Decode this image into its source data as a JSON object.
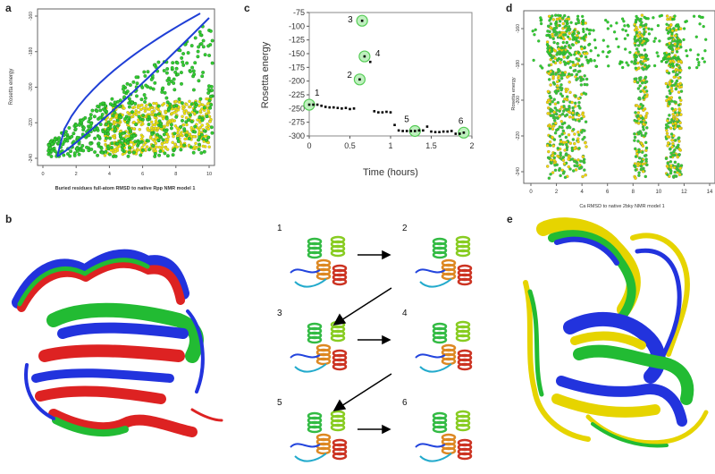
{
  "panels": {
    "a": {
      "letter": "a",
      "ylabel": "Rosetta energy",
      "xlabel": "Buried residues full-atom RMSD to native Rpp NMR model 1",
      "xticks": [
        "0",
        "2",
        "4",
        "6",
        "8",
        "10"
      ],
      "yticks": [
        "-160",
        "-180",
        "-200",
        "-220",
        "-240"
      ],
      "colors": {
        "green": "#33cc33",
        "yellow": "#f2e600",
        "blue": "#1f3fd6"
      }
    },
    "c": {
      "letter": "c",
      "ylabel": "Rosetta energy",
      "xlabel": "Time (hours)",
      "xticks": [
        "0",
        "0.5",
        "1",
        "1.5",
        "2"
      ],
      "yticks": [
        "-75",
        "-100",
        "-125",
        "-150",
        "-175",
        "-200",
        "-225",
        "-250",
        "-275",
        "-300"
      ],
      "point_labels": [
        "1",
        "2",
        "3",
        "4",
        "5",
        "6"
      ]
    },
    "d": {
      "letter": "d",
      "ylabel": "Rosetta energy",
      "xlabel": "Ca RMSD to native 2bky NMR model 1",
      "xticks": [
        "0",
        "2",
        "4",
        "6",
        "8",
        "10",
        "12",
        "14"
      ],
      "yticks": [
        "-160",
        "-180",
        "-200",
        "-220",
        "-240"
      ]
    },
    "b": {
      "letter": "b"
    },
    "e": {
      "letter": "e"
    },
    "middle": {
      "frame_labels": [
        "1",
        "2",
        "3",
        "4",
        "5",
        "6"
      ]
    }
  },
  "chart_data": [
    {
      "type": "scatter",
      "panel": "c",
      "ylabel": "Rosetta energy",
      "xlabel": "Time (hours)",
      "xlim": [
        0,
        2
      ],
      "ylim": [
        -300,
        -75
      ],
      "series": [
        {
          "x": [
            0.0,
            0.05,
            0.1,
            0.15,
            0.2,
            0.25,
            0.3,
            0.35,
            0.4,
            0.45,
            0.5,
            0.55,
            0.62,
            0.65,
            0.68,
            0.75,
            0.8,
            0.85,
            0.9,
            0.95,
            1.0,
            1.05,
            1.1,
            1.15,
            1.2,
            1.25,
            1.3,
            1.35,
            1.4,
            1.45,
            1.5,
            1.55,
            1.6,
            1.65,
            1.7,
            1.75,
            1.8,
            1.85,
            1.9
          ],
          "y": [
            -243,
            -243,
            -243,
            -245,
            -247,
            -248,
            -248,
            -249,
            -250,
            -249,
            -251,
            -250,
            -197,
            -90,
            -155,
            -165,
            -255,
            -257,
            -257,
            -256,
            -257,
            -280,
            -290,
            -291,
            -291,
            -291,
            -291,
            -290,
            -290,
            -283,
            -292,
            -293,
            -293,
            -292,
            -292,
            -291,
            -296,
            -296,
            -294
          ]
        }
      ],
      "highlighted": [
        {
          "label": "1",
          "x": 0.0,
          "y": -243
        },
        {
          "label": "2",
          "x": 0.62,
          "y": -197
        },
        {
          "label": "3",
          "x": 0.65,
          "y": -90
        },
        {
          "label": "4",
          "x": 0.68,
          "y": -155
        },
        {
          "label": "5",
          "x": 1.3,
          "y": -291
        },
        {
          "label": "6",
          "x": 1.9,
          "y": -294
        }
      ]
    }
  ]
}
